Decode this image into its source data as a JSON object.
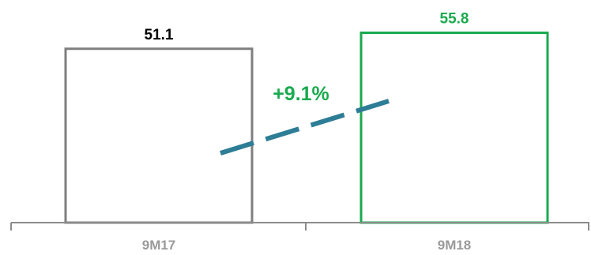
{
  "chart_data": {
    "type": "bar",
    "title": "",
    "xlabel": "",
    "ylabel": "",
    "categories": [
      "9M17",
      "9M18"
    ],
    "values": [
      51.1,
      55.8
    ],
    "value_labels": [
      "51.1",
      "55.8"
    ],
    "growth_label": "+9.1%",
    "ylim": [
      0,
      60
    ],
    "grid": false,
    "legend": "none",
    "colors": {
      "bar_9M17": "#7f7f7f",
      "bar_9M18": "#1aaa4f",
      "label_9M17": "#000000",
      "label_9M18": "#1aaa4f",
      "growth": "#1aaa4f",
      "trend_line": "#2e7d96",
      "axis": "#8c8c8c",
      "category_text": "#9a9a9a"
    }
  }
}
